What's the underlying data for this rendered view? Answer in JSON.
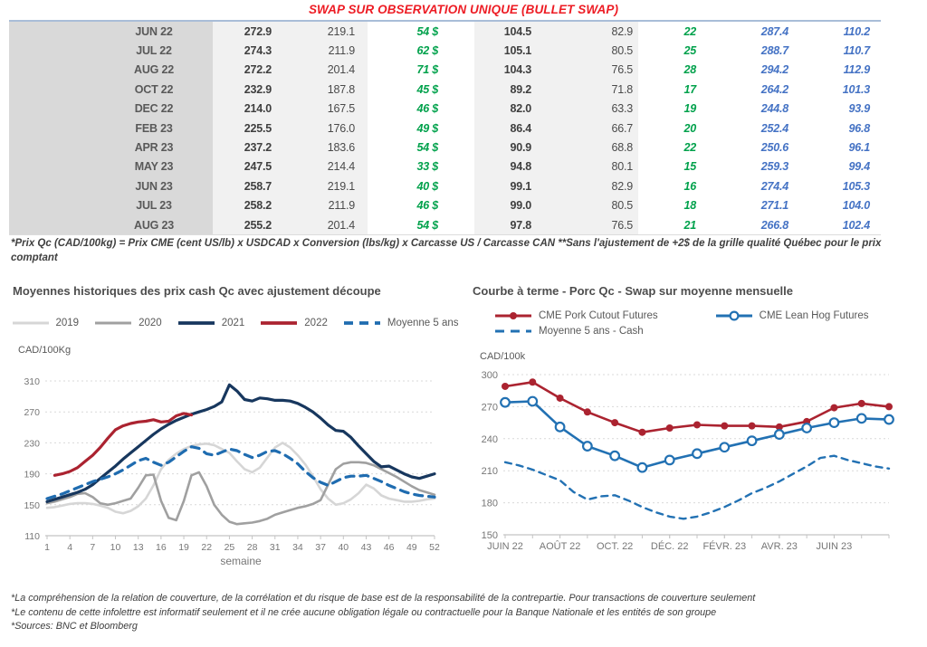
{
  "title": "SWAP SUR OBSERVATION UNIQUE (BULLET SWAP)",
  "colors": {
    "title_red": "#ed1c24",
    "green_value": "#00a14b",
    "blue_value": "#4472c4",
    "month_col_bg": "#d9d9d9",
    "value_col_bg": "#f1f1f1",
    "table_top_border": "#a9bdd8"
  },
  "table": {
    "rows": [
      [
        "JUN 22",
        "272.9",
        "219.1",
        "54 $",
        "104.5",
        "82.9",
        "22",
        "287.4",
        "110.2"
      ],
      [
        "JUL 22",
        "274.3",
        "211.9",
        "62 $",
        "105.1",
        "80.5",
        "25",
        "288.7",
        "110.7"
      ],
      [
        "AUG 22",
        "272.2",
        "201.4",
        "71 $",
        "104.3",
        "76.5",
        "28",
        "294.2",
        "112.9"
      ],
      [
        "OCT 22",
        "232.9",
        "187.8",
        "45 $",
        "89.2",
        "71.8",
        "17",
        "264.2",
        "101.3"
      ],
      [
        "DEC 22",
        "214.0",
        "167.5",
        "46 $",
        "82.0",
        "63.3",
        "19",
        "244.8",
        "93.9"
      ],
      [
        "FEB 23",
        "225.5",
        "176.0",
        "49 $",
        "86.4",
        "66.7",
        "20",
        "252.4",
        "96.8"
      ],
      [
        "APR 23",
        "237.2",
        "183.6",
        "54 $",
        "90.9",
        "68.8",
        "22",
        "250.6",
        "96.1"
      ],
      [
        "MAY 23",
        "247.5",
        "214.4",
        "33 $",
        "94.8",
        "80.1",
        "15",
        "259.3",
        "99.4"
      ],
      [
        "JUN 23",
        "258.7",
        "219.1",
        "40 $",
        "99.1",
        "82.9",
        "16",
        "274.4",
        "105.3"
      ],
      [
        "JUL 23",
        "258.2",
        "211.9",
        "46 $",
        "99.0",
        "80.5",
        "18",
        "271.1",
        "104.0"
      ],
      [
        "AUG 23",
        "255.2",
        "201.4",
        "54 $",
        "97.8",
        "76.5",
        "21",
        "266.8",
        "102.4"
      ]
    ]
  },
  "table_footnote": "*Prix Qc (CAD/100kg) = Prix CME (cent US/lb) x USDCAD x Conversion (lbs/kg) x Carcasse US / Carcasse CAN **Sans l'ajustement de +2$ de la grille qualité Québec pour le prix comptant",
  "chart_data": [
    {
      "type": "line",
      "title": "Moyennes historiques des prix cash Qc avec ajustement découpe",
      "unit_label": "CAD/100Kg",
      "xlabel": "semaine",
      "xlim": [
        1,
        52
      ],
      "ylim": [
        110,
        310
      ],
      "yticks": [
        110,
        150,
        190,
        230,
        270,
        310
      ],
      "xticks": [
        1,
        4,
        7,
        10,
        13,
        16,
        19,
        22,
        25,
        28,
        31,
        34,
        37,
        40,
        43,
        46,
        49,
        52
      ],
      "grid": "dashed-horizontal",
      "legend_position": "top",
      "series": [
        {
          "name": "2019",
          "color": "#d6d6d6",
          "style": "solid",
          "marker": "none",
          "width": 2.6,
          "x_start": 1,
          "values": [
            146,
            147,
            149,
            151,
            152,
            152,
            151,
            149,
            146,
            141,
            139,
            142,
            148,
            158,
            175,
            196,
            208,
            216,
            222,
            226,
            228,
            229,
            227,
            222,
            217,
            206,
            196,
            192,
            198,
            211,
            224,
            230,
            224,
            214,
            202,
            187,
            170,
            158,
            150,
            152,
            157,
            165,
            176,
            171,
            162,
            158,
            156,
            154,
            154,
            155,
            157,
            158
          ]
        },
        {
          "name": "2020",
          "color": "#a0a0a0",
          "style": "solid",
          "marker": "none",
          "width": 2.6,
          "x_start": 1,
          "values": [
            152,
            154,
            157,
            160,
            164,
            165,
            160,
            152,
            150,
            152,
            155,
            158,
            172,
            188,
            189,
            155,
            133,
            130,
            155,
            188,
            192,
            174,
            150,
            137,
            128,
            125,
            126,
            127,
            129,
            132,
            137,
            140,
            143,
            146,
            148,
            151,
            156,
            176,
            196,
            203,
            205,
            205,
            204,
            201,
            196,
            191,
            186,
            180,
            174,
            169,
            166,
            163
          ]
        },
        {
          "name": "2021",
          "color": "#17375e",
          "style": "solid",
          "marker": "none",
          "width": 3.2,
          "x_start": 1,
          "values": [
            154,
            157,
            160,
            163,
            166,
            170,
            176,
            184,
            192,
            200,
            209,
            217,
            225,
            233,
            241,
            248,
            254,
            259,
            263,
            267,
            270,
            273,
            277,
            283,
            305,
            297,
            286,
            284,
            288,
            287,
            285,
            285,
            284,
            281,
            276,
            270,
            262,
            253,
            246,
            245,
            237,
            226,
            216,
            206,
            199,
            200,
            195,
            190,
            186,
            184,
            187,
            190
          ]
        },
        {
          "name": "2022",
          "color": "#ab2330",
          "style": "solid",
          "marker": "none",
          "width": 3.2,
          "x_start": 2,
          "values": [
            188,
            190,
            193,
            198,
            206,
            214,
            224,
            236,
            247,
            252,
            255,
            257,
            258,
            260,
            257,
            258,
            265,
            268,
            266
          ]
        },
        {
          "name": "Moyenne 5 ans",
          "color": "#1f6cb0",
          "style": "dashed",
          "dash": "9 7",
          "marker": "none",
          "width": 3.2,
          "x_start": 1,
          "values": [
            158,
            161,
            164,
            168,
            172,
            176,
            180,
            183,
            186,
            190,
            195,
            201,
            207,
            210,
            205,
            201,
            205,
            212,
            219,
            225,
            223,
            216,
            214,
            218,
            222,
            220,
            215,
            211,
            214,
            219,
            220,
            216,
            210,
            203,
            193,
            185,
            179,
            175,
            180,
            185,
            187,
            187,
            188,
            184,
            180,
            175,
            171,
            167,
            164,
            162,
            161,
            160
          ]
        }
      ]
    },
    {
      "type": "line",
      "title": "Courbe à terme - Porc Qc - Swap sur moyenne mensuelle",
      "unit_label": "CAD/100k",
      "xlabel": "",
      "xlim": [
        0,
        14
      ],
      "ylim": [
        150,
        300
      ],
      "yticks": [
        150,
        180,
        210,
        240,
        270,
        300
      ],
      "xticks": [
        {
          "v": 0,
          "label": "JUIN 22"
        },
        {
          "v": 2,
          "label": "AOÛT 22"
        },
        {
          "v": 4,
          "label": "OCT. 22"
        },
        {
          "v": 6,
          "label": "DÉC. 22"
        },
        {
          "v": 8,
          "label": "FÉVR. 23"
        },
        {
          "v": 10,
          "label": "AVR. 23"
        },
        {
          "v": 12,
          "label": "JUIN 23"
        }
      ],
      "xminor": [
        0,
        1,
        2,
        3,
        4,
        5,
        6,
        7,
        8,
        9,
        10,
        11,
        12,
        13,
        14
      ],
      "grid": "dashed-horizontal",
      "legend_position": "top",
      "series": [
        {
          "name": "CME Pork Cutout Futures",
          "color": "#ab2330",
          "style": "solid",
          "marker": "dot",
          "width": 2.6,
          "x_start": 0,
          "values": [
            289,
            293,
            278,
            265,
            255,
            246,
            250,
            253,
            252,
            252,
            251,
            256,
            269,
            273,
            270
          ]
        },
        {
          "name": "CME Lean Hog Futures",
          "color": "#2271b3",
          "style": "solid",
          "marker": "open-circle",
          "width": 2.6,
          "x_start": 0,
          "values": [
            274,
            275,
            251,
            233,
            224,
            213,
            220,
            226,
            232,
            238,
            244,
            250,
            255,
            259,
            258
          ]
        },
        {
          "name": "Moyenne 5 ans - Cash",
          "color": "#2271b3",
          "style": "dashed",
          "dash": "7 6",
          "marker": "none",
          "width": 2.4,
          "x_start": 0,
          "x_step": 0.5,
          "values": [
            218,
            215,
            211,
            206,
            201,
            190,
            183,
            186,
            187,
            182,
            176,
            171,
            167,
            165,
            167,
            171,
            176,
            182,
            189,
            194,
            200,
            207,
            214,
            222,
            224,
            220,
            217,
            214,
            212
          ]
        }
      ]
    }
  ],
  "footer_lines": [
    "*La compréhension de la relation de couverture, de la corrélation et du risque de base est de la responsabilité de la contrepartie. Pour transactions de couverture seulement",
    "*Le contenu de cette infolettre est informatif seulement et il ne crée aucune obligation légale ou contractuelle pour la Banque Nationale et les entités de son groupe",
    "*Sources: BNC et Bloomberg"
  ]
}
